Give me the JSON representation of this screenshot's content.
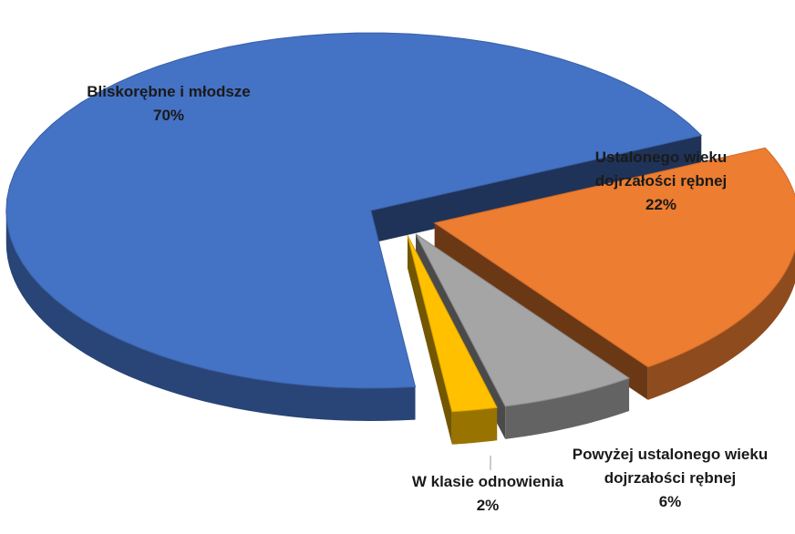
{
  "chart_data": {
    "type": "pie",
    "categories": [
      "Bliskorębne i młodsze",
      "Ustalonego wieku dojrzałości rębnej",
      "Powyżej ustalonego wieku dojrzałości rębnej",
      "W klasie odnowienia"
    ],
    "values": [
      70,
      22,
      6,
      2
    ],
    "value_labels": [
      "70%",
      "22%",
      "6%",
      "2%"
    ],
    "colors": [
      "#4472c4",
      "#ed7d31",
      "#a5a5a5",
      "#ffc000"
    ]
  }
}
